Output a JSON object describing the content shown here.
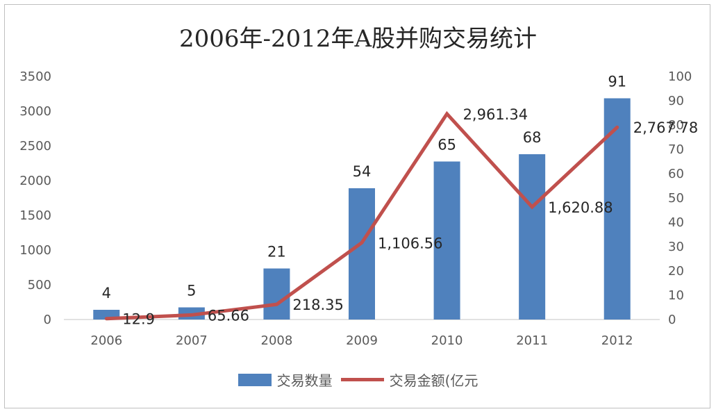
{
  "chart_data": {
    "type": "bar",
    "title": "2006年-2012年A股并购交易统计",
    "categories": [
      "2006",
      "2007",
      "2008",
      "2009",
      "2010",
      "2011",
      "2012"
    ],
    "series": [
      {
        "name": "交易数量",
        "type": "bar",
        "axis": "right",
        "values": [
          4,
          5,
          21,
          54,
          65,
          68,
          91
        ],
        "labels": [
          "4",
          "5",
          "21",
          "54",
          "65",
          "68",
          "91"
        ],
        "color": "#4f81bd"
      },
      {
        "name": "交易金额(亿元",
        "type": "line",
        "axis": "left",
        "values": [
          12.9,
          65.66,
          218.35,
          1106.56,
          2961.34,
          1620.88,
          2767.78
        ],
        "labels": [
          "12.9",
          "65.66",
          "218.35",
          "1,106.56",
          "2,961.34",
          "1,620.88",
          "2,767.78"
        ],
        "color": "#c0504d"
      }
    ],
    "y_left": {
      "ticks": [
        "0",
        "500",
        "1000",
        "1500",
        "2000",
        "2500",
        "3000",
        "3500"
      ],
      "ylim": [
        0,
        3500
      ]
    },
    "y_right": {
      "ticks": [
        "0",
        "10",
        "20",
        "30",
        "40",
        "50",
        "60",
        "70",
        "80",
        "90",
        "100"
      ],
      "ylim": [
        0,
        100
      ]
    },
    "grid": false,
    "legend_position": "bottom"
  }
}
